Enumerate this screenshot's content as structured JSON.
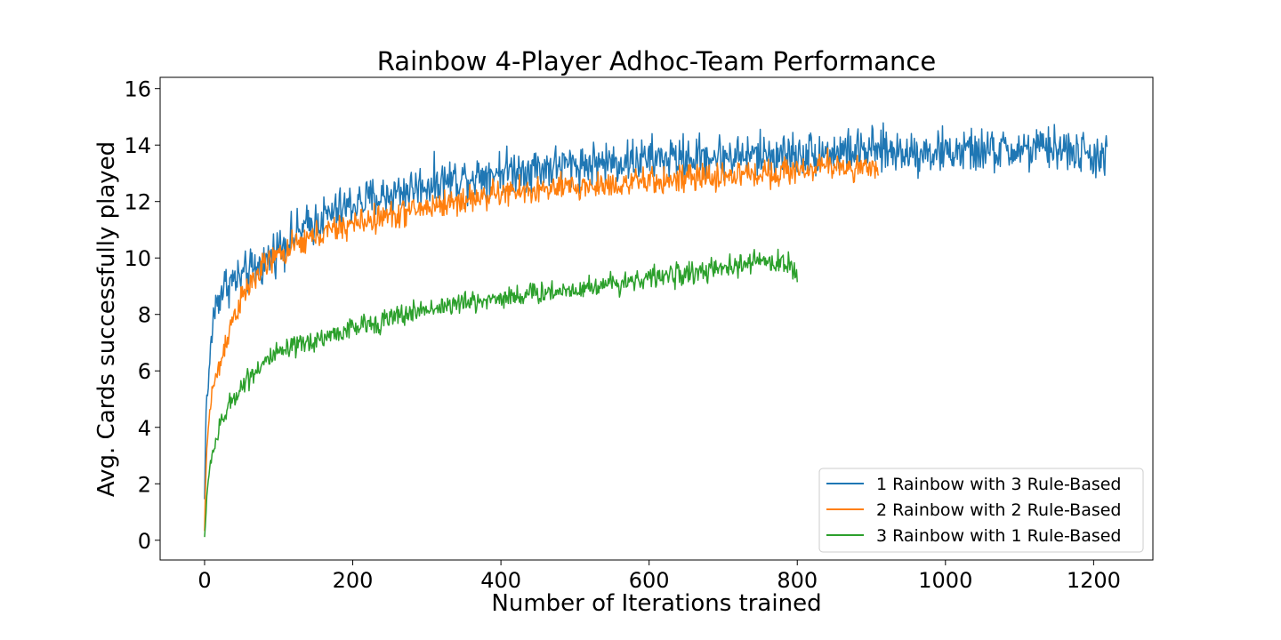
{
  "chart_data": {
    "type": "line",
    "title": "Rainbow 4-Player Adhoc-Team Performance",
    "xlabel": "Number of Iterations trained",
    "ylabel": "Avg. Cards successfully played",
    "xlim": [
      -60,
      1280
    ],
    "ylim": [
      -0.7,
      16.4
    ],
    "xticks": [
      0,
      200,
      400,
      600,
      800,
      1000,
      1200
    ],
    "yticks": [
      0,
      2,
      4,
      6,
      8,
      10,
      12,
      14,
      16
    ],
    "grid": false,
    "legend_position": "lower-right",
    "series": [
      {
        "name": "1 Rainbow with 3 Rule-Based",
        "color": "#1f77b4",
        "noise": 0.55,
        "x": [
          0,
          2,
          5,
          8,
          12,
          20,
          30,
          50,
          80,
          100,
          150,
          200,
          300,
          400,
          500,
          600,
          700,
          800,
          900,
          1000,
          1100,
          1150,
          1200,
          1218
        ],
        "y": [
          1.4,
          4.8,
          5.4,
          6.8,
          8.0,
          8.7,
          9.1,
          9.3,
          9.8,
          10.4,
          11.3,
          11.9,
          12.6,
          13.1,
          13.3,
          13.5,
          13.6,
          13.7,
          13.8,
          13.75,
          13.8,
          13.9,
          13.6,
          13.6
        ]
      },
      {
        "name": "2 Rainbow with 2 Rule-Based",
        "color": "#ff7f0e",
        "noise": 0.35,
        "x": [
          0,
          2,
          5,
          10,
          20,
          30,
          40,
          60,
          80,
          100,
          150,
          200,
          300,
          400,
          500,
          600,
          700,
          800,
          850,
          900,
          910
        ],
        "y": [
          0.3,
          2.6,
          4.0,
          5.3,
          6.1,
          7.2,
          8.0,
          9.0,
          9.7,
          10.1,
          10.8,
          11.2,
          11.8,
          12.3,
          12.5,
          12.7,
          12.9,
          13.1,
          13.3,
          13.1,
          13.0
        ]
      },
      {
        "name": "3 Rainbow with 1 Rule-Based",
        "color": "#2ca02c",
        "noise": 0.28,
        "x": [
          0,
          3,
          8,
          15,
          25,
          40,
          60,
          80,
          100,
          150,
          200,
          300,
          400,
          500,
          600,
          700,
          750,
          790,
          800
        ],
        "y": [
          0.1,
          1.5,
          2.8,
          3.5,
          4.3,
          5.1,
          5.8,
          6.3,
          6.6,
          7.1,
          7.5,
          8.2,
          8.6,
          8.9,
          9.3,
          9.6,
          9.9,
          9.8,
          9.2
        ]
      }
    ]
  }
}
